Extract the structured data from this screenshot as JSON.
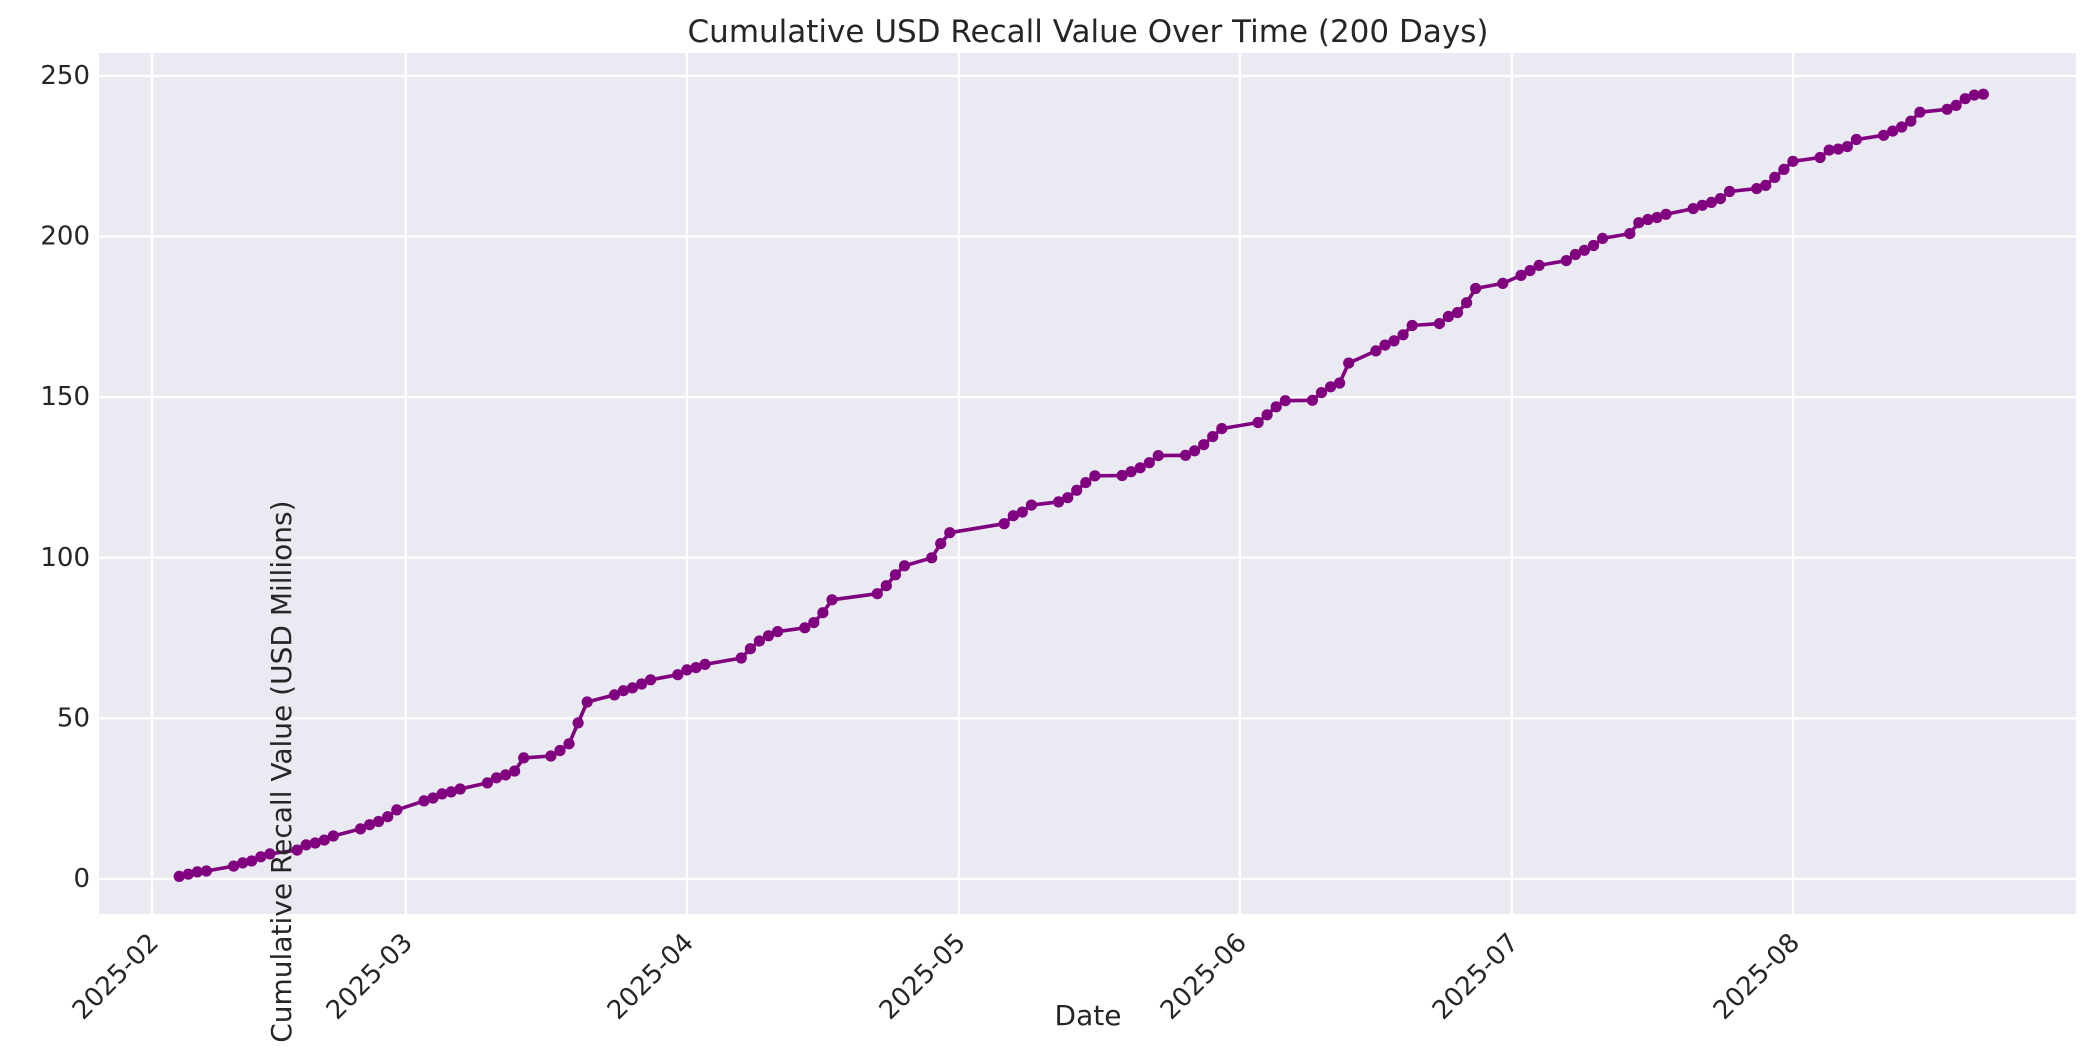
{
  "figure": {
    "title": "Cumulative USD Recall Value Over Time (200 Days)",
    "xlabel": "Date",
    "ylabel": "Cumulative Recall Value (USD Millions)"
  },
  "style": {
    "figure_bg": "#FFFFFF",
    "axes_bg": "#EAEAF2",
    "grid_color": "#FFFFFF",
    "line_color": "#800080",
    "marker_color": "#800080",
    "text_color": "#262626"
  },
  "chart_data": {
    "type": "line",
    "title": "Cumulative USD Recall Value Over Time (200 Days)",
    "xlabel": "Date",
    "ylabel": "Cumulative Recall Value (USD Millions)",
    "grid": true,
    "legend": "none",
    "marker": "o",
    "x_ticks": [
      "2025-02",
      "2025-03",
      "2025-04",
      "2025-05",
      "2025-06",
      "2025-07",
      "2025-08"
    ],
    "y_ticks": [
      0,
      50,
      100,
      150,
      200,
      250
    ],
    "ylim": [
      -11,
      257
    ],
    "xlim": [
      "2025-01-26",
      "2025-09-01"
    ],
    "series": [
      {
        "name": "Cumulative Recall Value (USD Millions)",
        "color": "#800080",
        "points": [
          [
            "2025-02-04",
            0.8
          ],
          [
            "2025-02-05",
            1.5
          ],
          [
            "2025-02-06",
            2.2
          ],
          [
            "2025-02-07",
            2.5
          ],
          [
            "2025-02-10",
            4.0
          ],
          [
            "2025-02-11",
            5.0
          ],
          [
            "2025-02-12",
            5.6
          ],
          [
            "2025-02-13",
            6.9
          ],
          [
            "2025-02-14",
            7.8
          ],
          [
            "2025-02-17",
            9.0
          ],
          [
            "2025-02-18",
            10.6
          ],
          [
            "2025-02-19",
            11.2
          ],
          [
            "2025-02-20",
            12.1
          ],
          [
            "2025-02-21",
            13.4
          ],
          [
            "2025-02-24",
            15.6
          ],
          [
            "2025-02-25",
            16.9
          ],
          [
            "2025-02-26",
            17.9
          ],
          [
            "2025-02-27",
            19.4
          ],
          [
            "2025-02-28",
            21.5
          ],
          [
            "2025-03-03",
            24.3
          ],
          [
            "2025-03-04",
            25.2
          ],
          [
            "2025-03-05",
            26.5
          ],
          [
            "2025-03-06",
            27.1
          ],
          [
            "2025-03-07",
            28.0
          ],
          [
            "2025-03-10",
            29.9
          ],
          [
            "2025-03-11",
            31.5
          ],
          [
            "2025-03-12",
            32.4
          ],
          [
            "2025-03-13",
            33.6
          ],
          [
            "2025-03-14",
            37.7
          ],
          [
            "2025-03-17",
            38.3
          ],
          [
            "2025-03-18",
            40.0
          ],
          [
            "2025-03-19",
            42.1
          ],
          [
            "2025-03-20",
            48.6
          ],
          [
            "2025-03-21",
            55.1
          ],
          [
            "2025-03-24",
            57.3
          ],
          [
            "2025-03-25",
            58.6
          ],
          [
            "2025-03-26",
            59.5
          ],
          [
            "2025-03-27",
            60.7
          ],
          [
            "2025-03-28",
            62.0
          ],
          [
            "2025-03-31",
            63.6
          ],
          [
            "2025-04-01",
            65.1
          ],
          [
            "2025-04-02",
            65.8
          ],
          [
            "2025-04-03",
            66.8
          ],
          [
            "2025-04-07",
            68.8
          ],
          [
            "2025-04-08",
            71.7
          ],
          [
            "2025-04-09",
            74.1
          ],
          [
            "2025-04-10",
            75.7
          ],
          [
            "2025-04-11",
            77.0
          ],
          [
            "2025-04-14",
            78.2
          ],
          [
            "2025-04-15",
            79.8
          ],
          [
            "2025-04-16",
            82.9
          ],
          [
            "2025-04-17",
            86.9
          ],
          [
            "2025-04-22",
            88.8
          ],
          [
            "2025-04-23",
            91.3
          ],
          [
            "2025-04-24",
            94.7
          ],
          [
            "2025-04-25",
            97.5
          ],
          [
            "2025-04-28",
            100.0
          ],
          [
            "2025-04-29",
            104.4
          ],
          [
            "2025-04-30",
            107.8
          ],
          [
            "2025-05-06",
            110.6
          ],
          [
            "2025-05-07",
            113.1
          ],
          [
            "2025-05-08",
            114.2
          ],
          [
            "2025-05-09",
            116.4
          ],
          [
            "2025-05-12",
            117.4
          ],
          [
            "2025-05-13",
            118.7
          ],
          [
            "2025-05-14",
            121.0
          ],
          [
            "2025-05-15",
            123.4
          ],
          [
            "2025-05-16",
            125.5
          ],
          [
            "2025-05-19",
            125.6
          ],
          [
            "2025-05-20",
            126.8
          ],
          [
            "2025-05-21",
            128.0
          ],
          [
            "2025-05-22",
            129.6
          ],
          [
            "2025-05-23",
            131.8
          ],
          [
            "2025-05-26",
            131.9
          ],
          [
            "2025-05-27",
            133.3
          ],
          [
            "2025-05-28",
            135.2
          ],
          [
            "2025-05-29",
            137.7
          ],
          [
            "2025-05-30",
            140.2
          ],
          [
            "2025-06-03",
            142.1
          ],
          [
            "2025-06-04",
            144.5
          ],
          [
            "2025-06-05",
            147.0
          ],
          [
            "2025-06-06",
            148.9
          ],
          [
            "2025-06-09",
            149.0
          ],
          [
            "2025-06-10",
            151.4
          ],
          [
            "2025-06-11",
            153.2
          ],
          [
            "2025-06-12",
            154.4
          ],
          [
            "2025-06-13",
            160.6
          ],
          [
            "2025-06-16",
            164.4
          ],
          [
            "2025-06-17",
            166.2
          ],
          [
            "2025-06-18",
            167.5
          ],
          [
            "2025-06-19",
            169.4
          ],
          [
            "2025-06-20",
            172.3
          ],
          [
            "2025-06-23",
            172.9
          ],
          [
            "2025-06-24",
            175.1
          ],
          [
            "2025-06-25",
            176.3
          ],
          [
            "2025-06-26",
            179.4
          ],
          [
            "2025-06-27",
            183.8
          ],
          [
            "2025-06-30",
            185.4
          ],
          [
            "2025-07-02",
            187.9
          ],
          [
            "2025-07-03",
            189.4
          ],
          [
            "2025-07-04",
            191.0
          ],
          [
            "2025-07-07",
            192.5
          ],
          [
            "2025-07-08",
            194.4
          ],
          [
            "2025-07-09",
            195.7
          ],
          [
            "2025-07-10",
            197.2
          ],
          [
            "2025-07-11",
            199.4
          ],
          [
            "2025-07-14",
            200.9
          ],
          [
            "2025-07-15",
            204.3
          ],
          [
            "2025-07-16",
            205.3
          ],
          [
            "2025-07-17",
            205.9
          ],
          [
            "2025-07-18",
            206.9
          ],
          [
            "2025-07-21",
            208.7
          ],
          [
            "2025-07-22",
            209.7
          ],
          [
            "2025-07-23",
            210.6
          ],
          [
            "2025-07-24",
            211.8
          ],
          [
            "2025-07-25",
            214.0
          ],
          [
            "2025-07-28",
            214.9
          ],
          [
            "2025-07-29",
            215.9
          ],
          [
            "2025-07-30",
            218.4
          ],
          [
            "2025-07-31",
            220.9
          ],
          [
            "2025-08-01",
            223.4
          ],
          [
            "2025-08-04",
            224.6
          ],
          [
            "2025-08-05",
            226.9
          ],
          [
            "2025-08-06",
            227.2
          ],
          [
            "2025-08-07",
            228.0
          ],
          [
            "2025-08-08",
            230.2
          ],
          [
            "2025-08-11",
            231.5
          ],
          [
            "2025-08-12",
            232.8
          ],
          [
            "2025-08-13",
            234.1
          ],
          [
            "2025-08-14",
            235.9
          ],
          [
            "2025-08-15",
            238.7
          ],
          [
            "2025-08-18",
            239.6
          ],
          [
            "2025-08-19",
            240.8
          ],
          [
            "2025-08-20",
            242.9
          ],
          [
            "2025-08-21",
            244.0
          ],
          [
            "2025-08-22",
            244.3
          ]
        ]
      }
    ]
  }
}
